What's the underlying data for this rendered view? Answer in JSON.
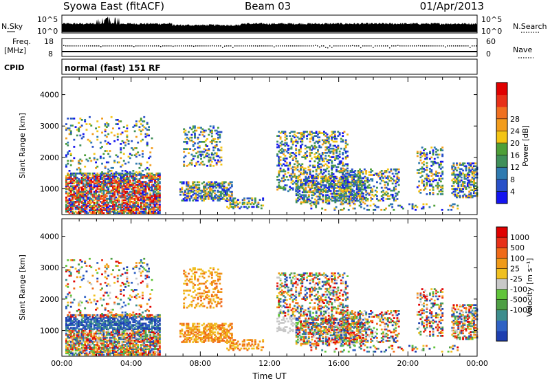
{
  "header": {
    "station": "Syowa East (fitACF)",
    "beam": "Beam 03",
    "date": "01/Apr/2013"
  },
  "strip_labels": {
    "nsky": "N.Sky",
    "nsky_max": "10^5",
    "nsky_min": "10^0",
    "nsearch": "N.Search",
    "nsearch_max": "10^5",
    "nsearch_min": "10^0",
    "freq": "Freq.",
    "freq_unit": "[MHz]",
    "freq_max": "18",
    "freq_min": "8",
    "nave": "Nave",
    "nave_max": "60",
    "nave_min": "0",
    "cpid": "CPID",
    "cpid_value": "normal (fast) 151 RF"
  },
  "chart_data": [
    {
      "type": "heatmap",
      "ylabel": "Slant Range [km]",
      "xlabel": "",
      "x_ticks": [
        "00:00",
        "04:00",
        "08:00",
        "12:00",
        "16:00",
        "20:00",
        "00:00"
      ],
      "x_range_hours": [
        0,
        24
      ],
      "y_ticks": [
        1000,
        2000,
        3000,
        4000
      ],
      "ylim": [
        180,
        4560
      ],
      "colorbar": {
        "label": "Power [dB]",
        "ticks": [
          "4",
          "8",
          "12",
          "16",
          "20",
          "24",
          "28"
        ],
        "colors": [
          "#1414f0",
          "#2850c8",
          "#2f7ab0",
          "#3f8f5a",
          "#4e9f38",
          "#f3c414",
          "#f29c1c",
          "#f07020",
          "#e83018",
          "#e00000"
        ]
      }
    },
    {
      "type": "heatmap",
      "ylabel": "Slant Range [km]",
      "xlabel": "Time UT",
      "x_ticks": [
        "00:00",
        "04:00",
        "08:00",
        "12:00",
        "16:00",
        "20:00",
        "00:00"
      ],
      "x_range_hours": [
        0,
        24
      ],
      "y_ticks": [
        1000,
        2000,
        3000,
        4000
      ],
      "ylim": [
        180,
        4560
      ],
      "colorbar": {
        "label": "Velocity [m s⁻¹]",
        "ticks": [
          "1000",
          "500",
          "100",
          "25",
          "-25",
          "-100",
          "-500",
          "-1000"
        ],
        "colors": [
          "#1e3fb0",
          "#2f62c4",
          "#3d8d8d",
          "#4e9f45",
          "#61c43a",
          "#c8c8c8",
          "#f0c020",
          "#f09a18",
          "#f06a18",
          "#e83018",
          "#e00000"
        ]
      }
    }
  ]
}
